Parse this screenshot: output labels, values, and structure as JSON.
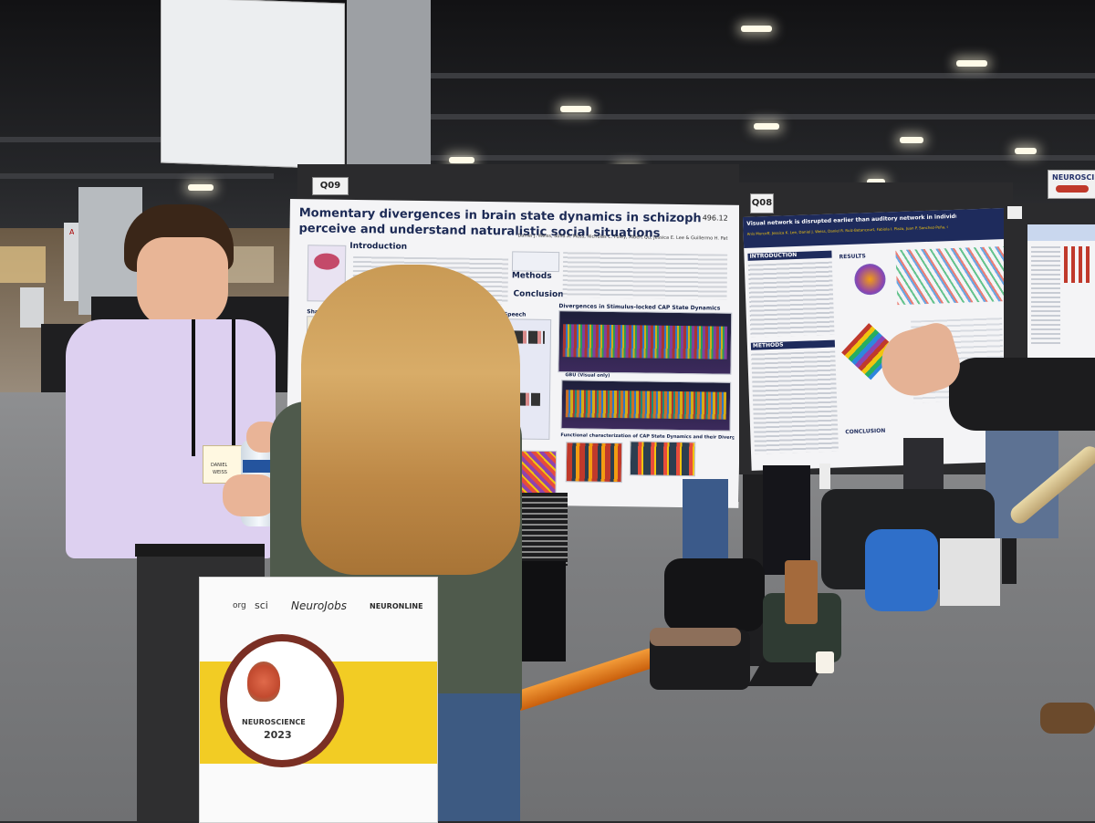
{
  "scene": {
    "poster_left": {
      "board_tag": "Q09",
      "number": "496.12",
      "title_line1": "Momentary divergences in brain state dynamics in schizophrenia are associated with a failure to",
      "title_line2": "perceive and understand naturalistic social situations",
      "authors": "Daniel J. Weiss, Sofia A. Moss, Nicholas C. Foley, Albert Qu, Jessica E. Lee & Guillermo H. Patel",
      "sections": {
        "introduction": "Introduction",
        "methods": "Methods",
        "conclusion": "Conclusion",
        "shared": "Shared and Uniq",
        "with_without": "with and without Speech",
        "gbu": "GBU (Visual only)",
        "divergences": "Divergences in Stimulus-locked CAP State Dynamics",
        "functional": "Functional characterization of CAP State Dynamics and their Divergence"
      }
    },
    "poster_right": {
      "board_tag": "Q08",
      "title": "Visual network is disrupted earlier than auditory network in individuals with clinical high risk for schizophrenia",
      "authors": "Anis Murcoff, Jessica K. Lee, Daniel J. Weiss, Daniel R. Ruiz-Betancourt, Fabiola I. Plaza, Juan P. Sanchez-Peña, Guillermo H. Patel",
      "sections": {
        "introduction": "INTRODUCTION",
        "results": "RESULTS",
        "methods": "METHODS",
        "conclusion": "CONCLUSION"
      }
    },
    "badge": {
      "line1": "DANIEL",
      "line2": "WEISS"
    },
    "tote_bag": {
      "brand1": "NeuroJobs",
      "brand2": "NEURONLINE",
      "brand3": "org",
      "brand4": "sci",
      "event": "NEUROSCIENCE",
      "year": "2023"
    },
    "far_sign": "NEUROSCIE",
    "aisle_sign": "A",
    "colors": {
      "shirt": "#ddd0f0",
      "hair": "#c9964e",
      "sweater": "#4f5a4c",
      "bag_yellow": "#f2cc24",
      "backpack_blue": "#2f6fc9",
      "tube_orange": "#e87a1c"
    }
  }
}
